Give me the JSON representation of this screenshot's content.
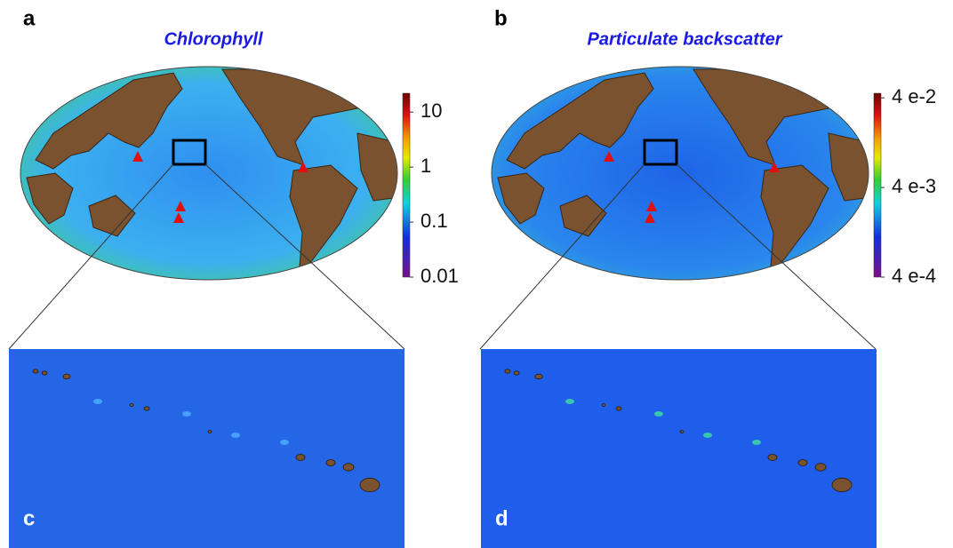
{
  "panels": [
    {
      "letter": "a",
      "title": "Chlorophyll",
      "colorbar": {
        "log": true,
        "lim": [
          0.01,
          22
        ],
        "ticks": [
          10,
          1,
          0.1,
          0.01
        ]
      }
    },
    {
      "letter": "b",
      "title": "Particulate backscatter",
      "colorbar": {
        "log": true,
        "lim": [
          0.0004,
          0.045
        ],
        "ticks": [
          {
            "value": 0.04,
            "label": "4 e-2"
          },
          {
            "value": 0.004,
            "label": "4 e-3"
          },
          {
            "value": 0.0004,
            "label": "4 e-4"
          }
        ]
      }
    }
  ],
  "zooms": [
    {
      "letter": "c"
    },
    {
      "letter": "d"
    }
  ]
}
